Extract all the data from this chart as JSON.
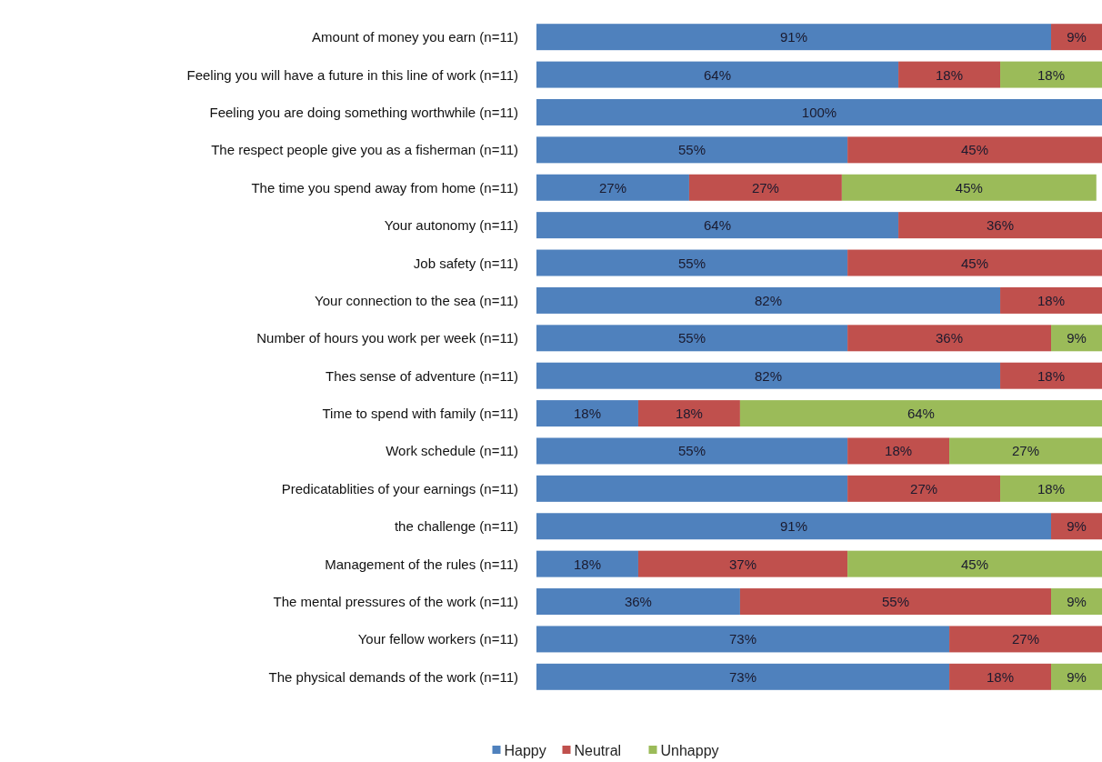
{
  "chart_data": {
    "type": "bar",
    "orientation": "horizontal",
    "stacked": true,
    "legend": "bottom",
    "categories": [
      "Amount of money you earn (n=11)",
      "Feeling you will have a future in this line of work (n=11)",
      "Feeling you are doing something worthwhile (n=11)",
      "The respect people give you as a fisherman (n=11)",
      "The time you spend away from home (n=11)",
      "Your autonomy (n=11)",
      "Job safety (n=11)",
      "Your connection to the sea (n=11)",
      "Number of hours you work per week (n=11)",
      "Thes sense of adventure (n=11)",
      "Time to spend with family (n=11)",
      "Work schedule (n=11)",
      "Predicatablities of your earnings (n=11)",
      "the challenge (n=11)",
      "Management of the rules (n=11)",
      "The mental pressures of the work (n=11)",
      "Your fellow workers (n=11)",
      "The physical demands of the work (n=11)"
    ],
    "series": [
      {
        "name": "Happy",
        "color": "#4f81bd",
        "values": [
          91,
          64,
          100,
          55,
          27,
          64,
          55,
          82,
          55,
          82,
          18,
          55,
          55,
          91,
          18,
          36,
          73,
          73
        ],
        "value_labels": [
          "91%",
          "64%",
          "100%",
          "55%",
          "27%",
          "64%",
          "55%",
          "82%",
          "55%",
          "82%",
          "18%",
          "55%",
          null,
          "91%",
          "18%",
          "36%",
          "73%",
          "73%"
        ]
      },
      {
        "name": "Neutral",
        "color": "#c0504d",
        "values": [
          9,
          18,
          null,
          45,
          27,
          36,
          45,
          18,
          36,
          18,
          18,
          18,
          27,
          9,
          37,
          55,
          27,
          18
        ],
        "value_labels": [
          "9%",
          "18%",
          null,
          "45%",
          "27%",
          "36%",
          "45%",
          "18%",
          "36%",
          "18%",
          "18%",
          "18%",
          "27%",
          "9%",
          "37%",
          "55%",
          "27%",
          "18%"
        ]
      },
      {
        "name": "Unhappy",
        "color": "#9bbb59",
        "values": [
          null,
          18,
          null,
          null,
          45,
          null,
          null,
          null,
          9,
          null,
          64,
          27,
          18,
          null,
          45,
          9,
          null,
          9
        ],
        "value_labels": [
          null,
          "18%",
          null,
          null,
          "45%",
          null,
          null,
          null,
          "9%",
          null,
          "64%",
          "27%",
          "18%",
          null,
          "45%",
          "9%",
          null,
          "9%"
        ]
      }
    ]
  }
}
